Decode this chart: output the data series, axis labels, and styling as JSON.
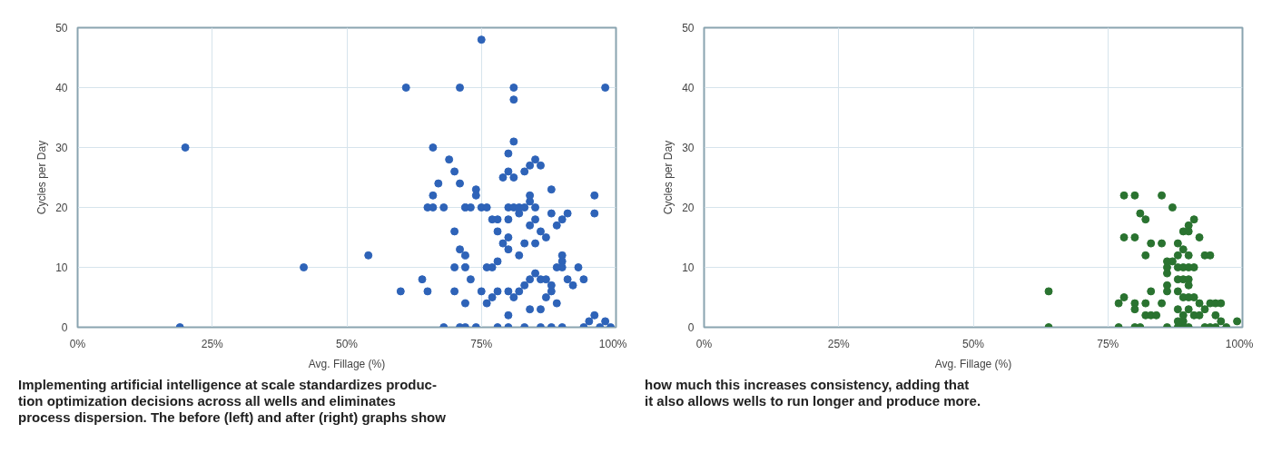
{
  "chart_data": [
    {
      "type": "scatter",
      "xlabel": "Avg. Fillage (%)",
      "ylabel": "Cycles per Day",
      "xlim": [
        0,
        100
      ],
      "ylim": [
        0,
        50
      ],
      "xticks": [
        {
          "value": 0,
          "label": "0%"
        },
        {
          "value": 25,
          "label": "25%"
        },
        {
          "value": 50,
          "label": "50%"
        },
        {
          "value": 75,
          "label": "75%"
        },
        {
          "value": 100,
          "label": "100%"
        }
      ],
      "yticks": [
        0,
        10,
        20,
        30,
        40,
        50
      ],
      "grid": true,
      "marker": "circle",
      "annotations": [
        "Implementing artificial intelligence at scale standardizes produc-",
        "tion optimization decisions across all wells and eliminates",
        "process dispersion. The before (left) and after (right) graphs show"
      ],
      "series": [
        {
          "color": "#2e63b8",
          "x": [
            20,
            19,
            42,
            54,
            60,
            61,
            71,
            75,
            81,
            81,
            98,
            66,
            69,
            70,
            67,
            66,
            71,
            74,
            74,
            65,
            66,
            68,
            72,
            73,
            75,
            76,
            77,
            78,
            80,
            80,
            81,
            82,
            82,
            83,
            84,
            83,
            84,
            85,
            86,
            80,
            81,
            79,
            80,
            81,
            88,
            88,
            90,
            91,
            89,
            87,
            85,
            84,
            86,
            85,
            84,
            78,
            79,
            80,
            80,
            82,
            83,
            85,
            90,
            90,
            90,
            70,
            71,
            72,
            72,
            70,
            73,
            70,
            72,
            71,
            74,
            75,
            76,
            77,
            78,
            76,
            77,
            78,
            80,
            81,
            82,
            83,
            84,
            85,
            86,
            87,
            87,
            88,
            88,
            89,
            84,
            86,
            86,
            80,
            78,
            80,
            83,
            90,
            93,
            96,
            96,
            94,
            95,
            96,
            97,
            98,
            99,
            68,
            72,
            94,
            92,
            91,
            64,
            65,
            88,
            89
          ],
          "values": [
            30,
            0,
            10,
            12,
            6,
            40,
            40,
            48,
            40,
            38,
            40,
            30,
            28,
            26,
            24,
            22,
            24,
            23,
            22,
            20,
            20,
            20,
            20,
            20,
            20,
            20,
            18,
            18,
            18,
            20,
            20,
            20,
            19,
            20,
            22,
            26,
            27,
            28,
            27,
            26,
            25,
            25,
            29,
            31,
            23,
            19,
            18,
            19,
            17,
            15,
            18,
            17,
            16,
            20,
            21,
            16,
            14,
            13,
            15,
            12,
            14,
            14,
            12,
            11,
            10,
            16,
            13,
            12,
            10,
            10,
            8,
            6,
            4,
            0,
            0,
            6,
            10,
            10,
            11,
            4,
            5,
            6,
            6,
            5,
            6,
            7,
            8,
            9,
            8,
            8,
            5,
            7,
            6,
            4,
            3,
            3,
            0,
            2,
            0,
            0,
            0,
            0,
            10,
            22,
            19,
            0,
            1,
            2,
            0,
            1,
            0,
            0,
            0,
            8,
            7,
            8,
            8,
            6,
            0,
            10
          ]
        }
      ]
    },
    {
      "type": "scatter",
      "xlabel": "Avg. Fillage (%)",
      "ylabel": "Cycles per Day",
      "xlim": [
        0,
        100
      ],
      "ylim": [
        0,
        50
      ],
      "xticks": [
        {
          "value": 0,
          "label": "0%"
        },
        {
          "value": 25,
          "label": "25%"
        },
        {
          "value": 50,
          "label": "50%"
        },
        {
          "value": 75,
          "label": "75%"
        },
        {
          "value": 100,
          "label": "100%"
        }
      ],
      "yticks": [
        0,
        10,
        20,
        30,
        40,
        50
      ],
      "grid": true,
      "marker": "circle",
      "annotations": [
        "how much this increases consistency, adding that",
        "it also allows wells to run longer and produce more."
      ],
      "series": [
        {
          "color": "#2a7330",
          "x": [
            64,
            64,
            78,
            80,
            85,
            87,
            81,
            82,
            89,
            90,
            91,
            90,
            92,
            78,
            80,
            82,
            83,
            85,
            88,
            88,
            89,
            90,
            87,
            86,
            86,
            88,
            89,
            90,
            91,
            93,
            94,
            86,
            88,
            89,
            90,
            90,
            86,
            86,
            85,
            88,
            89,
            90,
            91,
            92,
            93,
            94,
            95,
            96,
            95,
            96,
            97,
            99,
            77,
            78,
            80,
            80,
            82,
            83,
            82,
            83,
            84,
            86,
            88,
            89,
            90,
            77,
            80,
            81,
            88,
            89,
            90,
            91,
            92,
            93,
            94,
            95,
            88,
            89
          ],
          "values": [
            6,
            0,
            22,
            22,
            22,
            20,
            19,
            18,
            16,
            17,
            18,
            16,
            15,
            15,
            15,
            12,
            14,
            14,
            14,
            12,
            13,
            12,
            11,
            10,
            11,
            10,
            10,
            10,
            10,
            12,
            12,
            9,
            8,
            8,
            8,
            7,
            7,
            6,
            4,
            6,
            5,
            5,
            5,
            4,
            3,
            4,
            4,
            4,
            2,
            1,
            0,
            1,
            4,
            5,
            4,
            3,
            4,
            6,
            2,
            2,
            2,
            0,
            0,
            0,
            0,
            0,
            0,
            0,
            3,
            2,
            3,
            2,
            2,
            0,
            0,
            0,
            1,
            1
          ]
        }
      ]
    }
  ]
}
